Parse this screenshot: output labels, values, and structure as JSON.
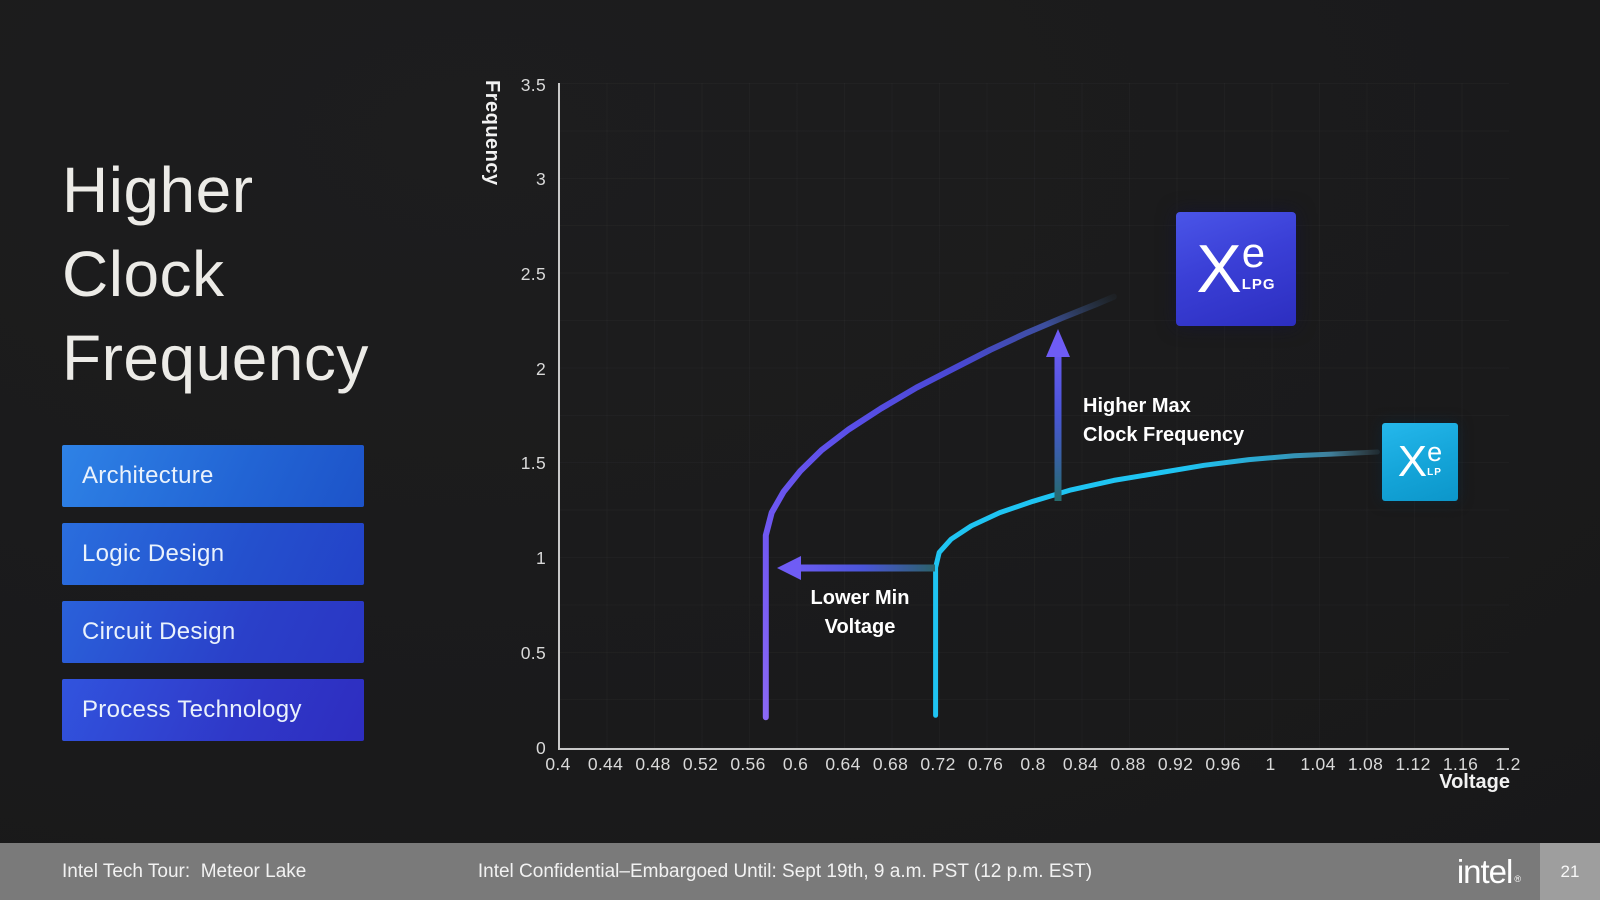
{
  "slide": {
    "title_lines": [
      "Higher",
      "Clock",
      "Frequency"
    ],
    "menu_items": [
      "Architecture",
      "Logic Design",
      "Circuit Design",
      "Process Technology"
    ]
  },
  "chart_data": {
    "type": "line",
    "title": "",
    "xlabel": "Voltage",
    "ylabel": "Frequency",
    "xlim": [
      0.4,
      1.2
    ],
    "ylim": [
      0,
      3.5
    ],
    "grid": true,
    "legend_position": "none",
    "x_ticks": [
      "0.4",
      "0.44",
      "0.48",
      "0.52",
      "0.56",
      "0.6",
      "0.64",
      "0.68",
      "0.72",
      "0.76",
      "0.8",
      "0.84",
      "0.88",
      "0.92",
      "0.96",
      "1",
      "1.04",
      "1.08",
      "1.12",
      "1.16",
      "1.2"
    ],
    "y_ticks": [
      "3.5",
      "3",
      "2.5",
      "2",
      "1.5",
      "1",
      "0.5",
      "0"
    ],
    "series": [
      {
        "name": "Xe LPG",
        "color": "#6a58f0",
        "min_voltage": 0.575,
        "max_frequency": 2.4,
        "points": [
          [
            0.575,
            0.16
          ],
          [
            0.575,
            0.6
          ],
          [
            0.575,
            1.0
          ],
          [
            0.575,
            1.12
          ],
          [
            0.58,
            1.24
          ],
          [
            0.59,
            1.35
          ],
          [
            0.604,
            1.46
          ],
          [
            0.622,
            1.57
          ],
          [
            0.645,
            1.68
          ],
          [
            0.672,
            1.79
          ],
          [
            0.702,
            1.9
          ],
          [
            0.733,
            2.0
          ],
          [
            0.764,
            2.1
          ],
          [
            0.795,
            2.19
          ],
          [
            0.825,
            2.27
          ],
          [
            0.853,
            2.34
          ],
          [
            0.868,
            2.38
          ]
        ]
      },
      {
        "name": "Xe LP",
        "color": "#1fc4f2",
        "min_voltage": 0.72,
        "max_frequency": 1.56,
        "points": [
          [
            0.718,
            0.17
          ],
          [
            0.718,
            0.6
          ],
          [
            0.718,
            0.95
          ],
          [
            0.721,
            1.03
          ],
          [
            0.731,
            1.1
          ],
          [
            0.748,
            1.17
          ],
          [
            0.772,
            1.24
          ],
          [
            0.8,
            1.3
          ],
          [
            0.832,
            1.36
          ],
          [
            0.868,
            1.41
          ],
          [
            0.906,
            1.45
          ],
          [
            0.944,
            1.49
          ],
          [
            0.982,
            1.52
          ],
          [
            1.02,
            1.54
          ],
          [
            1.056,
            1.55
          ],
          [
            1.09,
            1.56
          ]
        ]
      }
    ],
    "annotations": [
      {
        "id": "higher-max",
        "lines": [
          "Higher Max",
          "Clock Frequency"
        ],
        "arrow": "up"
      },
      {
        "id": "lower-min",
        "lines": [
          "Lower Min",
          "Voltage"
        ],
        "arrow": "left"
      }
    ]
  },
  "badges": {
    "lpg": {
      "x": "X",
      "e": "e",
      "sub": "LPG"
    },
    "lp": {
      "x": "X",
      "e": "e",
      "sub": "LP"
    }
  },
  "footer": {
    "left": "Intel Tech Tour:  Meteor Lake",
    "center": "Intel Confidential–Embargoed Until: Sept 19th, 9 a.m. PST (12 p.m. EST)",
    "brand": "intel",
    "registered": "®",
    "page": "21"
  }
}
